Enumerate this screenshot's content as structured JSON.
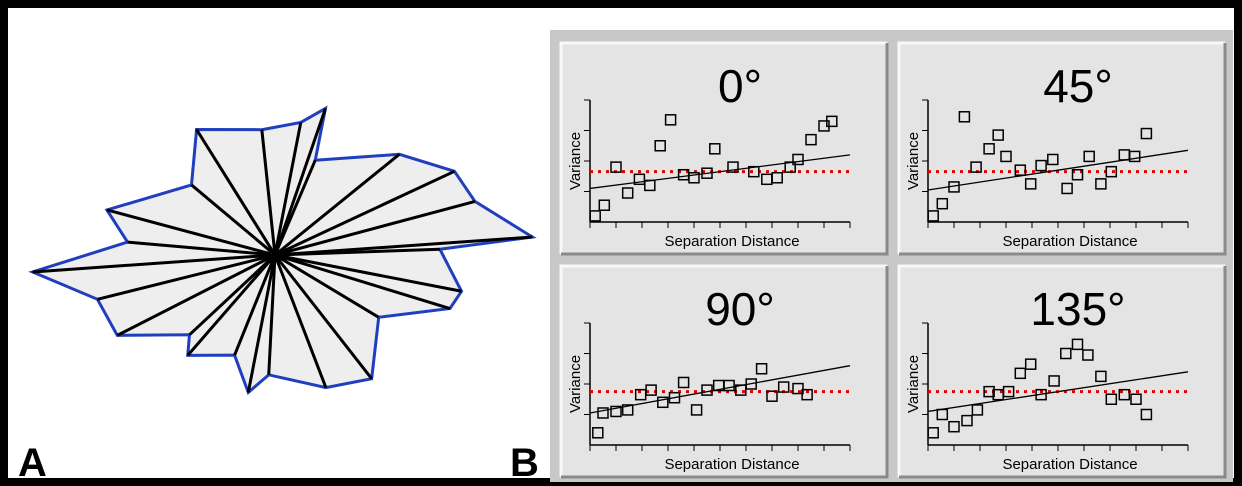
{
  "panel_labels": [
    "A",
    "B"
  ],
  "chart_data": [
    {
      "type": "rose",
      "color": "#1f3fbf",
      "fill": "#eeeeee",
      "spoke_color": "#000000",
      "directions": [
        2,
        4,
        15,
        25,
        39,
        67,
        71,
        79,
        96,
        122,
        140,
        165,
        175,
        184,
        194,
        207,
        223,
        229,
        248,
        259,
        267,
        291,
        308,
        329,
        343,
        349
      ],
      "values": [
        165,
        258,
        207,
        198,
        160,
        103,
        155,
        135,
        126,
        148,
        109,
        174,
        148,
        243,
        183,
        177,
        117,
        133,
        108,
        140,
        120,
        142,
        157,
        121,
        183,
        190
      ]
    },
    {
      "type": "scatter",
      "title": "0°",
      "xlabel": "Separation Distance",
      "ylabel": "Variance",
      "color": "#000000",
      "x": [
        0.2,
        0.55,
        1.0,
        1.45,
        1.9,
        2.3,
        2.7,
        3.1,
        3.6,
        4.0,
        4.5,
        4.8,
        5.5,
        6.3,
        6.8,
        7.2,
        7.7,
        8.0,
        8.5,
        9.0,
        9.3
      ],
      "values": [
        0.2,
        0.55,
        1.8,
        0.95,
        1.4,
        1.2,
        2.5,
        3.35,
        1.55,
        1.45,
        1.6,
        2.4,
        1.8,
        1.65,
        1.4,
        1.45,
        1.8,
        2.05,
        2.7,
        3.15,
        3.3
      ],
      "trend_line": {
        "x": [
          0,
          10
        ],
        "values": [
          1.1,
          2.2
        ],
        "color": "#000000"
      },
      "reference_line": {
        "value": 1.65,
        "color": "#e00000"
      },
      "xlim": [
        0,
        10
      ],
      "ylim": [
        0,
        4
      ],
      "xticks": [
        0,
        1,
        2,
        3,
        4,
        5,
        6,
        7,
        8,
        9,
        10
      ],
      "yticks": [
        1,
        2,
        3,
        4
      ]
    },
    {
      "type": "scatter",
      "title": "45°",
      "xlabel": "Separation Distance",
      "ylabel": "Variance",
      "color": "#000000",
      "x": [
        0.2,
        0.55,
        1.0,
        1.4,
        1.85,
        2.35,
        2.7,
        3.0,
        3.55,
        3.95,
        4.35,
        4.8,
        5.35,
        5.75,
        6.2,
        6.65,
        7.05,
        7.55,
        7.95,
        8.4
      ],
      "values": [
        0.2,
        0.6,
        1.15,
        3.45,
        1.8,
        2.4,
        2.85,
        2.15,
        1.7,
        1.25,
        1.85,
        2.05,
        1.1,
        1.55,
        2.15,
        1.25,
        1.65,
        2.2,
        2.15,
        2.9
      ],
      "trend_line": {
        "x": [
          0,
          10
        ],
        "values": [
          1.05,
          2.35
        ],
        "color": "#000000"
      },
      "reference_line": {
        "value": 1.65,
        "color": "#e00000"
      },
      "xlim": [
        0,
        10
      ],
      "ylim": [
        0,
        4
      ],
      "xticks": [
        0,
        1,
        2,
        3,
        4,
        5,
        6,
        7,
        8,
        9,
        10
      ],
      "yticks": [
        1,
        2,
        3,
        4
      ]
    },
    {
      "type": "scatter",
      "title": "90°",
      "xlabel": "Separation Distance",
      "ylabel": "Variance",
      "color": "#000000",
      "x": [
        0.3,
        0.5,
        1.0,
        1.45,
        1.95,
        2.35,
        2.8,
        3.25,
        3.6,
        4.1,
        4.5,
        4.95,
        5.35,
        5.8,
        6.2,
        6.6,
        7.0,
        7.45,
        8.0,
        8.35
      ],
      "values": [
        0.4,
        1.05,
        1.1,
        1.15,
        1.65,
        1.8,
        1.4,
        1.55,
        2.05,
        1.15,
        1.8,
        1.95,
        1.95,
        1.8,
        2.0,
        2.5,
        1.6,
        1.9,
        1.85,
        1.65
      ],
      "trend_line": {
        "x": [
          0,
          10
        ],
        "values": [
          1.05,
          2.6
        ],
        "color": "#000000"
      },
      "reference_line": {
        "value": 1.75,
        "color": "#e00000"
      },
      "xlim": [
        0,
        10
      ],
      "ylim": [
        0,
        4
      ],
      "xticks": [
        0,
        1,
        2,
        3,
        4,
        5,
        6,
        7,
        8,
        9,
        10
      ],
      "yticks": [
        1,
        2,
        3,
        4
      ]
    },
    {
      "type": "scatter",
      "title": "135°",
      "xlabel": "Separation Distance",
      "ylabel": "Variance",
      "color": "#000000",
      "x": [
        0.2,
        0.55,
        1.0,
        1.5,
        1.9,
        2.35,
        2.7,
        3.1,
        3.55,
        3.95,
        4.35,
        4.85,
        5.3,
        5.75,
        6.15,
        6.65,
        7.05,
        7.55,
        8.0,
        8.4
      ],
      "values": [
        0.4,
        1.0,
        0.6,
        0.8,
        1.15,
        1.75,
        1.65,
        1.75,
        2.35,
        2.65,
        1.65,
        2.1,
        3.0,
        3.3,
        2.95,
        2.25,
        1.5,
        1.65,
        1.5,
        1.0
      ],
      "trend_line": {
        "x": [
          0,
          10
        ],
        "values": [
          1.1,
          2.4
        ],
        "color": "#000000"
      },
      "reference_line": {
        "value": 1.75,
        "color": "#e00000"
      },
      "xlim": [
        0,
        10
      ],
      "ylim": [
        0,
        4
      ],
      "xticks": [
        0,
        1,
        2,
        3,
        4,
        5,
        6,
        7,
        8,
        9,
        10
      ],
      "yticks": [
        1,
        2,
        3,
        4
      ]
    }
  ]
}
